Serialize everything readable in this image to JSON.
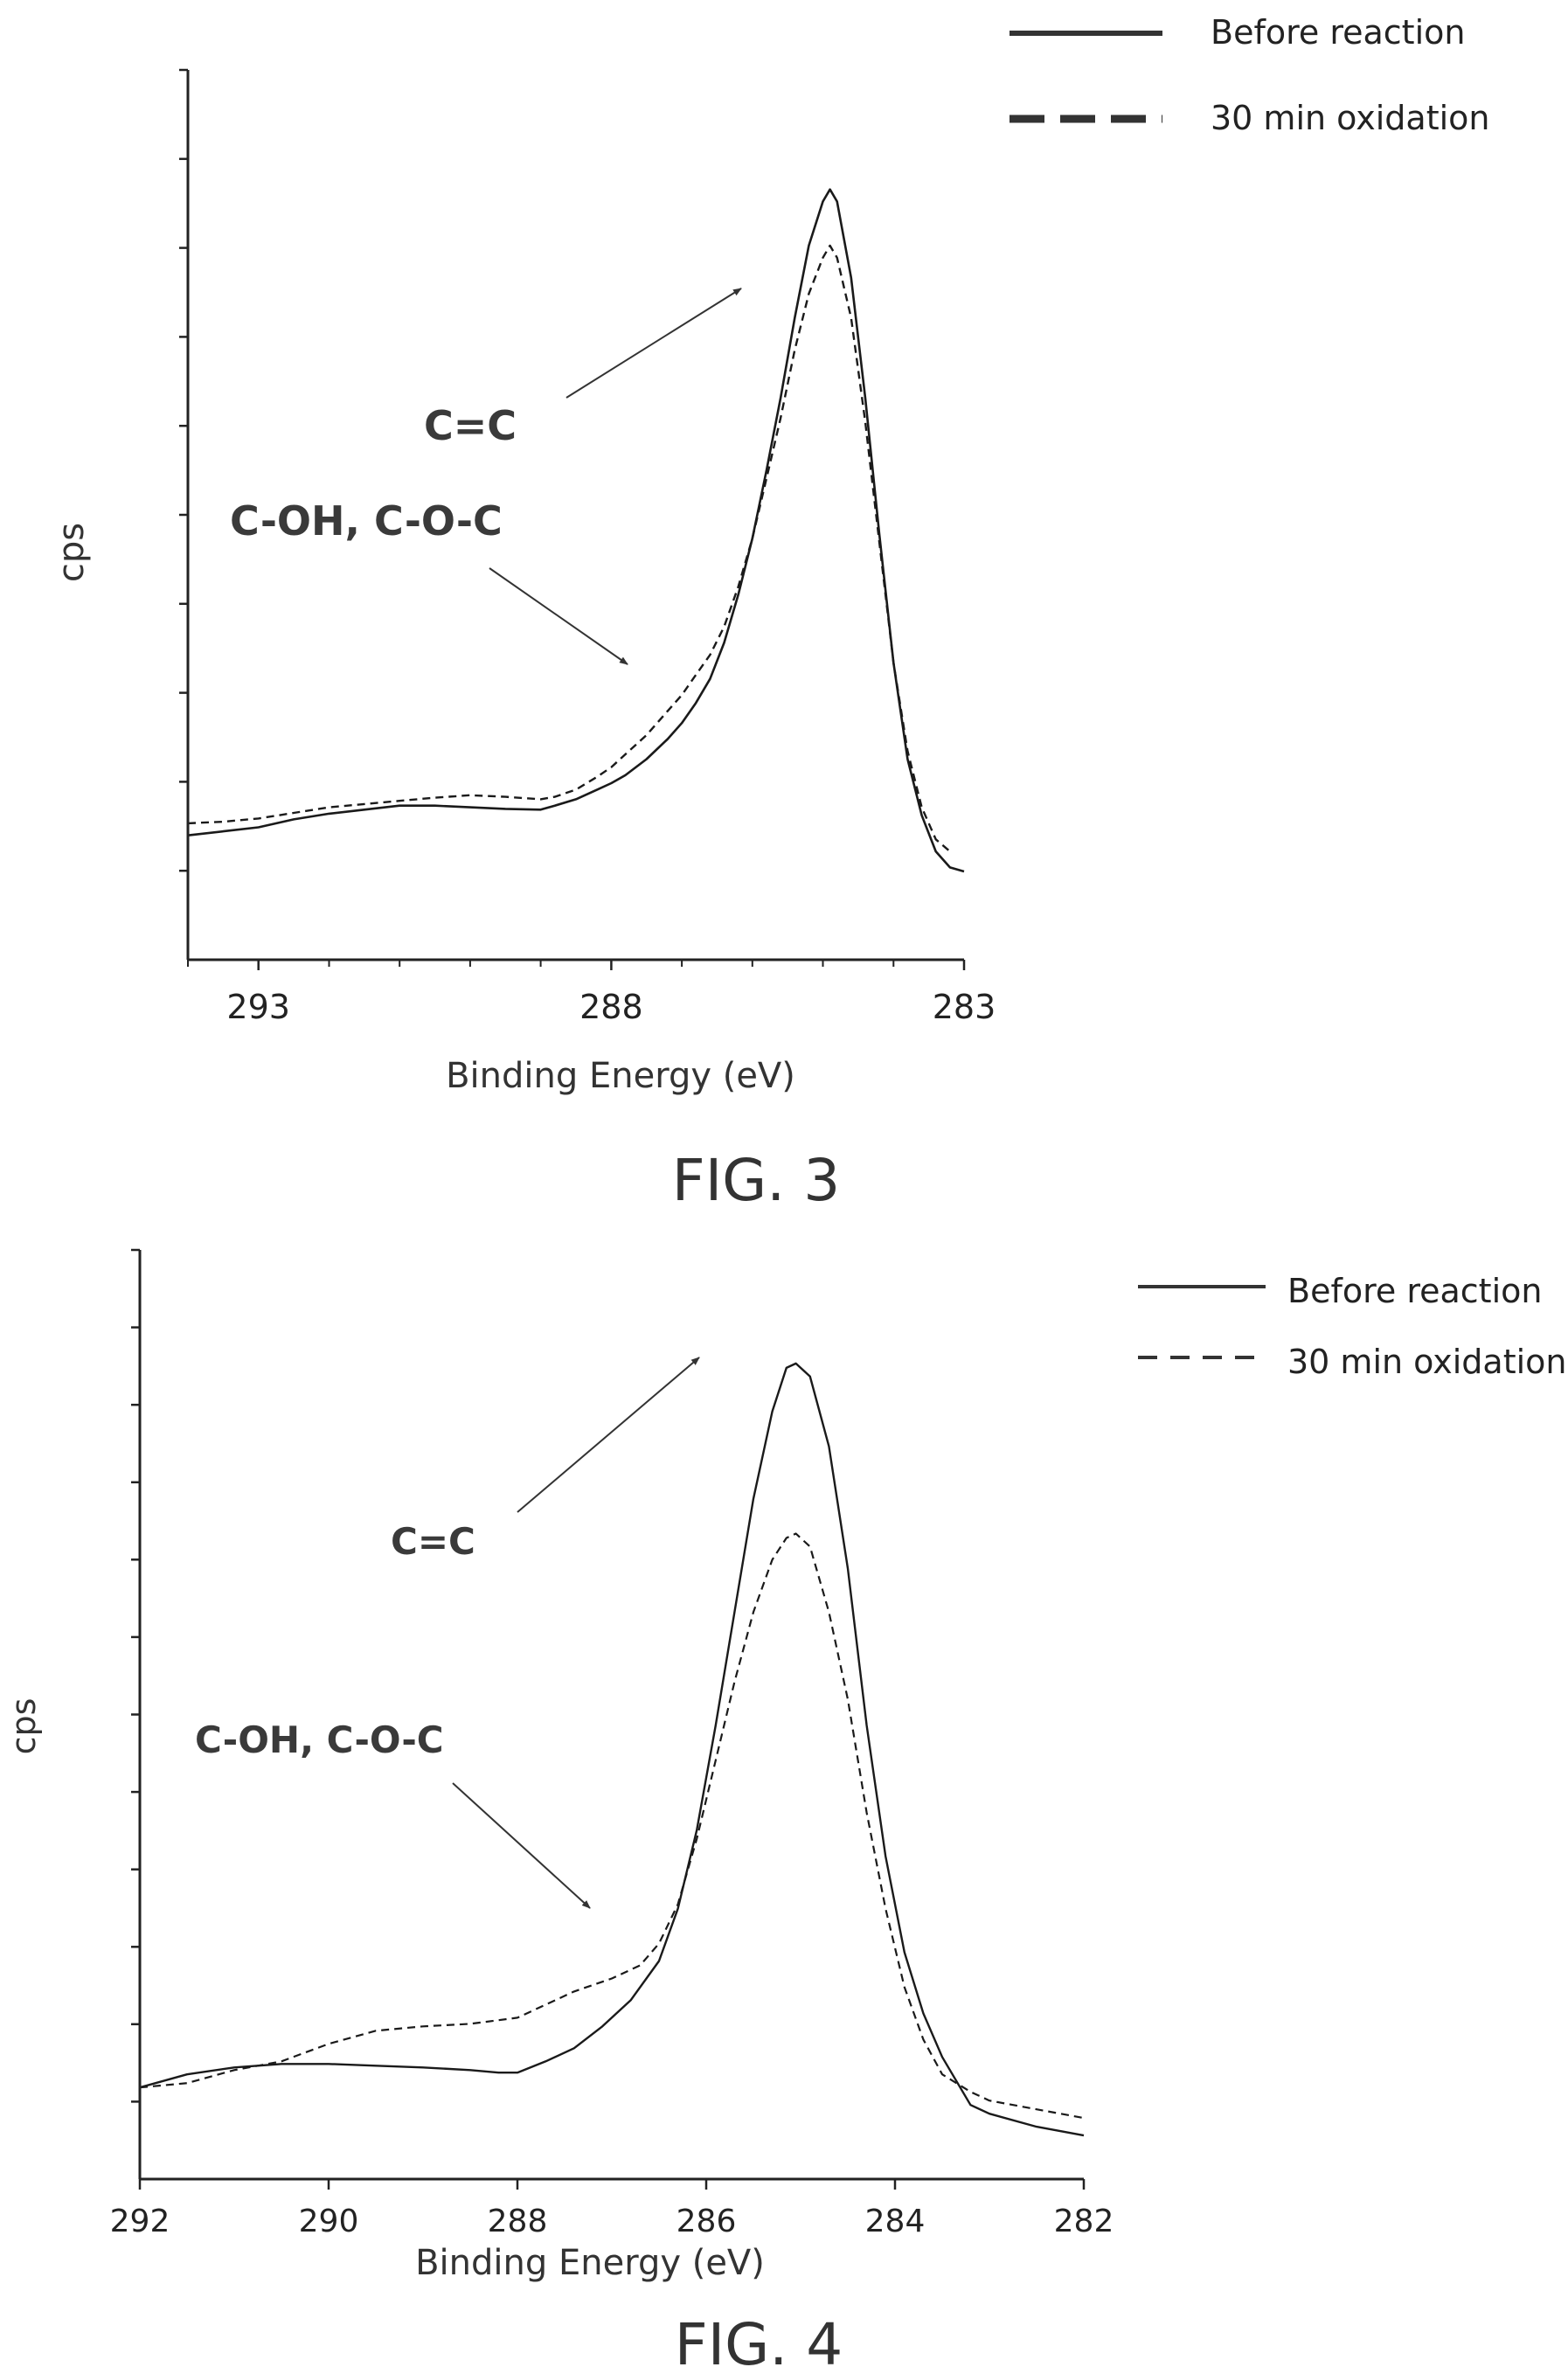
{
  "chart_data": [
    {
      "type": "line",
      "caption": "FIG. 3",
      "xlabel": "Binding Energy (eV)",
      "ylabel": "cps",
      "xlim": [
        294,
        283
      ],
      "ylim": [
        0,
        100
      ],
      "x_ticks": [
        293,
        288,
        283
      ],
      "x_tick_labels": [
        "293",
        "288",
        "283"
      ],
      "y_tick_count": 10,
      "grid": false,
      "legend_position": "top-right",
      "series": [
        {
          "name": "Before reaction",
          "style": "solid",
          "points": [
            [
              294,
              15.5
            ],
            [
              293.5,
              16
            ],
            [
              293,
              16.5
            ],
            [
              292.5,
              17.5
            ],
            [
              292,
              18.2
            ],
            [
              291.5,
              18.7
            ],
            [
              291,
              19.2
            ],
            [
              290.5,
              19.2
            ],
            [
              290,
              19
            ],
            [
              289.5,
              18.8
            ],
            [
              289,
              18.7
            ],
            [
              288.8,
              19.2
            ],
            [
              288.5,
              20
            ],
            [
              288.2,
              21.2
            ],
            [
              288,
              22
            ],
            [
              287.8,
              23
            ],
            [
              287.5,
              25
            ],
            [
              287.2,
              27.5
            ],
            [
              287,
              29.5
            ],
            [
              286.8,
              32
            ],
            [
              286.6,
              35
            ],
            [
              286.4,
              39.5
            ],
            [
              286.2,
              45.5
            ],
            [
              286,
              52.5
            ],
            [
              285.8,
              61
            ],
            [
              285.6,
              70
            ],
            [
              285.4,
              80
            ],
            [
              285.2,
              89
            ],
            [
              285,
              94.5
            ],
            [
              284.9,
              96
            ],
            [
              284.8,
              94.5
            ],
            [
              284.6,
              85
            ],
            [
              284.4,
              70
            ],
            [
              284.2,
              53
            ],
            [
              284,
              37
            ],
            [
              283.8,
              25
            ],
            [
              283.6,
              18
            ],
            [
              283.4,
              13.5
            ],
            [
              283.2,
              11.5
            ],
            [
              283,
              11
            ]
          ]
        },
        {
          "name": "30 min oxidation",
          "style": "dashed",
          "points": [
            [
              294,
              17
            ],
            [
              293.5,
              17.2
            ],
            [
              293,
              17.6
            ],
            [
              292.5,
              18.3
            ],
            [
              292,
              19
            ],
            [
              291.5,
              19.4
            ],
            [
              291,
              19.8
            ],
            [
              290.5,
              20.2
            ],
            [
              290,
              20.5
            ],
            [
              289.5,
              20.3
            ],
            [
              289,
              20
            ],
            [
              288.8,
              20.3
            ],
            [
              288.5,
              21.2
            ],
            [
              288.2,
              22.8
            ],
            [
              288,
              24
            ],
            [
              287.8,
              25.6
            ],
            [
              287.5,
              28
            ],
            [
              287.2,
              31
            ],
            [
              287,
              33
            ],
            [
              286.8,
              35.5
            ],
            [
              286.6,
              38
            ],
            [
              286.4,
              41.5
            ],
            [
              286.2,
              46.5
            ],
            [
              286,
              52.5
            ],
            [
              285.8,
              60
            ],
            [
              285.6,
              67.5
            ],
            [
              285.4,
              76
            ],
            [
              285.2,
              83
            ],
            [
              285,
              87.5
            ],
            [
              284.9,
              89
            ],
            [
              284.8,
              87.5
            ],
            [
              284.6,
              80
            ],
            [
              284.4,
              67
            ],
            [
              284.2,
              52
            ],
            [
              284,
              37
            ],
            [
              283.8,
              26
            ],
            [
              283.6,
              19
            ],
            [
              283.4,
              15
            ],
            [
              283.2,
              13.5
            ]
          ]
        }
      ],
      "annotations": [
        {
          "text": "C=C",
          "points_to": "main peak"
        },
        {
          "text": "C-OH, C-O-C",
          "points_to": "shoulder"
        }
      ]
    },
    {
      "type": "line",
      "caption": "FIG. 4",
      "xlabel": "Binding Energy (eV)",
      "ylabel": "cps",
      "xlim": [
        292,
        282
      ],
      "ylim": [
        0,
        100
      ],
      "x_ticks": [
        292,
        290,
        288,
        286,
        284,
        282
      ],
      "x_tick_labels": [
        "292",
        "290",
        "288",
        "286",
        "284",
        "282"
      ],
      "y_tick_count": 12,
      "grid": false,
      "legend_position": "top-right",
      "series": [
        {
          "name": "Before reaction",
          "style": "solid",
          "points": [
            [
              292,
              10.5
            ],
            [
              291.5,
              12
            ],
            [
              291,
              12.8
            ],
            [
              290.5,
              13.2
            ],
            [
              290,
              13.2
            ],
            [
              289.5,
              13
            ],
            [
              289,
              12.8
            ],
            [
              288.5,
              12.5
            ],
            [
              288.2,
              12.2
            ],
            [
              288,
              12.2
            ],
            [
              287.7,
              13.5
            ],
            [
              287.4,
              15
            ],
            [
              287.1,
              17.5
            ],
            [
              286.8,
              20.5
            ],
            [
              286.5,
              25
            ],
            [
              286.3,
              31
            ],
            [
              286.1,
              40
            ],
            [
              285.9,
              52
            ],
            [
              285.7,
              65
            ],
            [
              285.5,
              78
            ],
            [
              285.3,
              88
            ],
            [
              285.15,
              93
            ],
            [
              285.05,
              93.5
            ],
            [
              284.9,
              92
            ],
            [
              284.7,
              84
            ],
            [
              284.5,
              70
            ],
            [
              284.3,
              52
            ],
            [
              284.1,
              37
            ],
            [
              283.9,
              26
            ],
            [
              283.7,
              19
            ],
            [
              283.5,
              14
            ],
            [
              283.2,
              8.5
            ],
            [
              283,
              7.5
            ],
            [
              282.5,
              6
            ],
            [
              282,
              5
            ]
          ]
        },
        {
          "name": "30 min oxidation",
          "style": "dashed",
          "points": [
            [
              292,
              10.5
            ],
            [
              291.5,
              11
            ],
            [
              291,
              12.5
            ],
            [
              290.5,
              13.5
            ],
            [
              290,
              15.5
            ],
            [
              289.5,
              17
            ],
            [
              289,
              17.5
            ],
            [
              288.5,
              17.8
            ],
            [
              288,
              18.5
            ],
            [
              287.7,
              20
            ],
            [
              287.4,
              21.5
            ],
            [
              287,
              23
            ],
            [
              286.7,
              24.5
            ],
            [
              286.5,
              27
            ],
            [
              286.3,
              31.5
            ],
            [
              286.1,
              39
            ],
            [
              285.9,
              48
            ],
            [
              285.7,
              57
            ],
            [
              285.5,
              65
            ],
            [
              285.3,
              71
            ],
            [
              285.15,
              73.5
            ],
            [
              285.05,
              74
            ],
            [
              284.9,
              72.5
            ],
            [
              284.7,
              65
            ],
            [
              284.5,
              55
            ],
            [
              284.3,
              42
            ],
            [
              284.1,
              31
            ],
            [
              283.9,
              22
            ],
            [
              283.7,
              16
            ],
            [
              283.5,
              12
            ],
            [
              283.2,
              10
            ],
            [
              283,
              9
            ],
            [
              282.5,
              8
            ],
            [
              282,
              7
            ]
          ]
        }
      ],
      "annotations": [
        {
          "text": "C=C",
          "points_to": "main peak"
        },
        {
          "text": "C-OH, C-O-C",
          "points_to": "shoulder"
        }
      ]
    }
  ]
}
